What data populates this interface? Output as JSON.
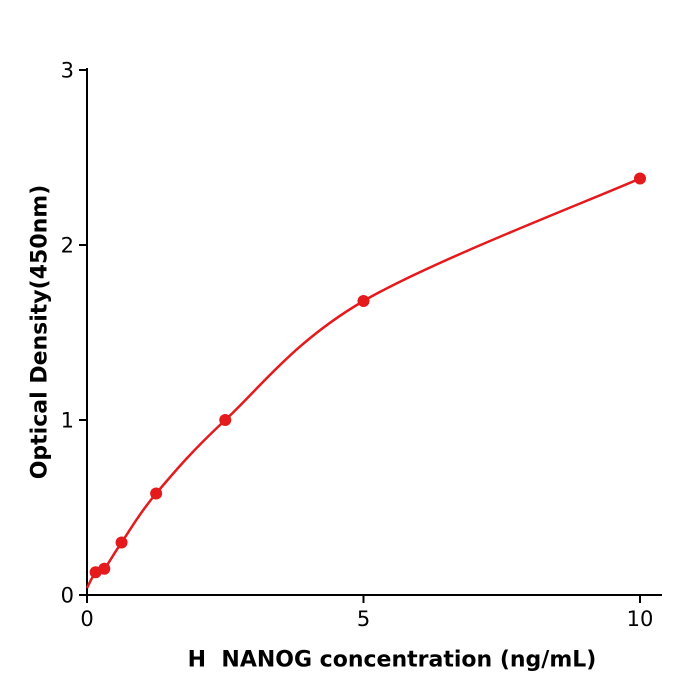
{
  "chart_data": {
    "type": "scatter",
    "title": "",
    "xlabel": "H  NANOG concentration (ng/mL)",
    "ylabel": "Optical Density(450nm)",
    "xlim": [
      0,
      10.4
    ],
    "ylim": [
      0,
      3
    ],
    "x_ticks": [
      0,
      5,
      10
    ],
    "y_ticks": [
      0,
      1,
      2,
      3
    ],
    "grid": false,
    "legend_position": "none",
    "accent_color": "#e41a1c",
    "axis_color": "#000000",
    "curve_start": {
      "x": 0,
      "y": 0.04
    },
    "points": {
      "x": [
        0.156,
        0.313,
        0.625,
        1.25,
        2.5,
        5,
        10
      ],
      "y": [
        0.13,
        0.15,
        0.3,
        0.58,
        1.0,
        1.68,
        2.38
      ]
    }
  }
}
